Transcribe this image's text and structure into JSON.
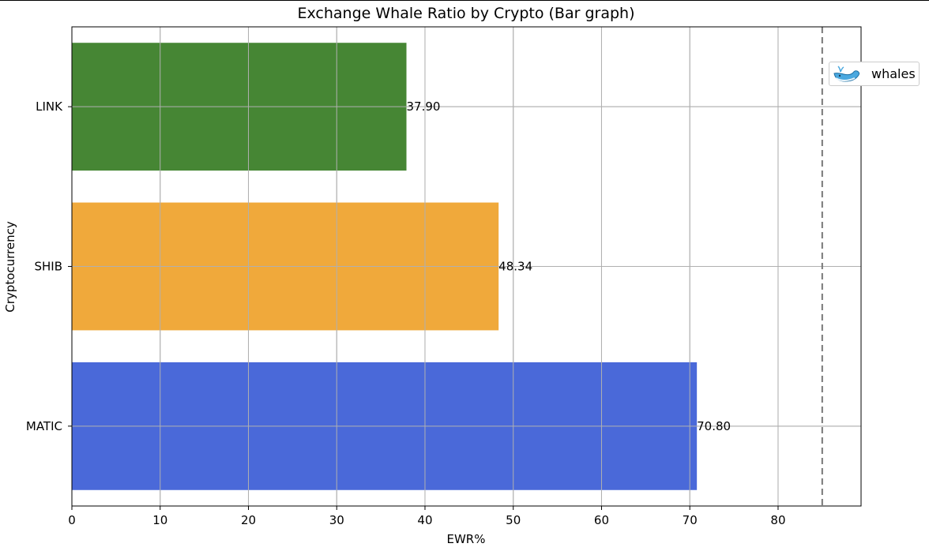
{
  "chart_data": {
    "type": "bar",
    "orientation": "horizontal",
    "title": "Exchange Whale Ratio by Crypto (Bar graph)",
    "xlabel": "EWR%",
    "ylabel": "Cryptocurrency",
    "categories": [
      "MATIC",
      "SHIB",
      "LINK"
    ],
    "values": [
      70.8,
      48.34,
      37.9
    ],
    "value_labels": [
      "70.80",
      "48.34",
      "37.90"
    ],
    "bar_colors": [
      "#4a69d9",
      "#f0a93b",
      "#468634"
    ],
    "xlim": [
      0,
      89.4
    ],
    "xticks": [
      0,
      10,
      20,
      30,
      40,
      50,
      60,
      70,
      80
    ],
    "grid": true,
    "reference_line": {
      "x": 85,
      "style": "dashed",
      "color": "#777777"
    },
    "legend": {
      "placement": "right",
      "entries": [
        {
          "label": "whales",
          "icon": "whale-icon"
        }
      ]
    }
  }
}
